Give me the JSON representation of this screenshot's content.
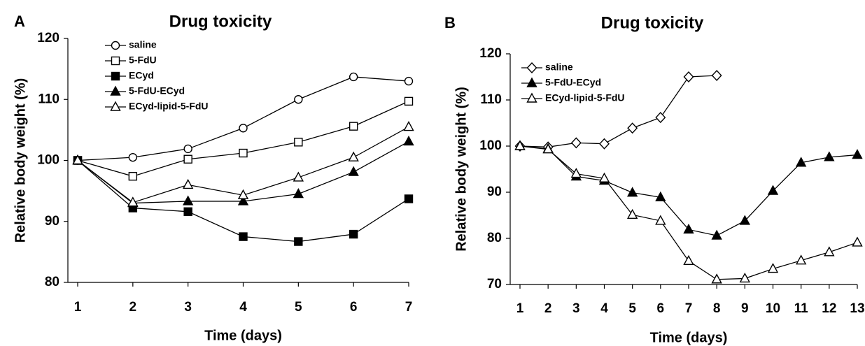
{
  "chart_data": [
    {
      "type": "line",
      "panel_label": "A",
      "title": "Drug toxicity",
      "x_label": "Time (days)",
      "y_label": "Relative body weight (%)",
      "x": [
        1,
        2,
        3,
        4,
        5,
        6,
        7
      ],
      "xlim": [
        1,
        7
      ],
      "xticks": [
        1,
        2,
        3,
        4,
        5,
        6,
        7
      ],
      "ylim": [
        80,
        120
      ],
      "yticks": [
        80,
        90,
        100,
        110,
        120
      ],
      "grid": false,
      "legend": "upper left",
      "series": [
        {
          "name": "saline",
          "color": "#000000",
          "marker": "circle",
          "filled": false,
          "values": [
            100,
            100.5,
            101.9,
            105.3,
            110,
            113.7,
            113
          ]
        },
        {
          "name": "5-FdU",
          "color": "#000000",
          "marker": "square",
          "filled": false,
          "values": [
            100,
            97.4,
            100.2,
            101.2,
            103,
            105.6,
            109.7
          ]
        },
        {
          "name": "ECyd",
          "color": "#000000",
          "marker": "square",
          "filled": true,
          "values": [
            100,
            92.2,
            91.6,
            87.5,
            86.7,
            87.9,
            93.7
          ]
        },
        {
          "name": "5-FdU-ECyd",
          "color": "#000000",
          "marker": "triangle",
          "filled": true,
          "values": [
            100,
            93,
            93.3,
            93.3,
            94.5,
            98.1,
            103.1
          ]
        },
        {
          "name": "ECyd-lipid-5-FdU",
          "color": "#000000",
          "marker": "triangle",
          "filled": false,
          "values": [
            100,
            93.1,
            96,
            94.3,
            97.2,
            100.5,
            105.5
          ]
        }
      ]
    },
    {
      "type": "line",
      "panel_label": "B",
      "title": "Drug toxicity",
      "x_label": "Time (days)",
      "y_label": "Relative body weight (%)",
      "x": [
        1,
        2,
        3,
        4,
        5,
        6,
        7,
        8,
        9,
        10,
        11,
        12,
        13
      ],
      "xlim": [
        1,
        13
      ],
      "xticks": [
        1,
        2,
        3,
        4,
        5,
        6,
        7,
        8,
        9,
        10,
        11,
        12,
        13
      ],
      "ylim": [
        70,
        120
      ],
      "yticks": [
        70,
        80,
        90,
        100,
        110,
        120
      ],
      "grid": false,
      "legend": "upper left",
      "series": [
        {
          "name": "saline",
          "color": "#000000",
          "marker": "diamond",
          "filled": false,
          "values": [
            100,
            99.8,
            100.7,
            100.5,
            103.9,
            106.2,
            115,
            115.3,
            null,
            null,
            null,
            null,
            null
          ]
        },
        {
          "name": "5-FdU-ECyd",
          "color": "#000000",
          "marker": "triangle",
          "filled": true,
          "values": [
            100,
            99.4,
            93.4,
            92.5,
            89.9,
            88.9,
            81.9,
            80.6,
            83.8,
            90.3,
            96.4,
            97.6,
            98.1
          ]
        },
        {
          "name": "ECyd-lipid-5-FdU",
          "color": "#000000",
          "marker": "triangle",
          "filled": false,
          "values": [
            100,
            99.3,
            94,
            93,
            85.1,
            83.8,
            75.1,
            71.1,
            71.3,
            73.4,
            75.2,
            77,
            79.1
          ]
        }
      ]
    }
  ]
}
